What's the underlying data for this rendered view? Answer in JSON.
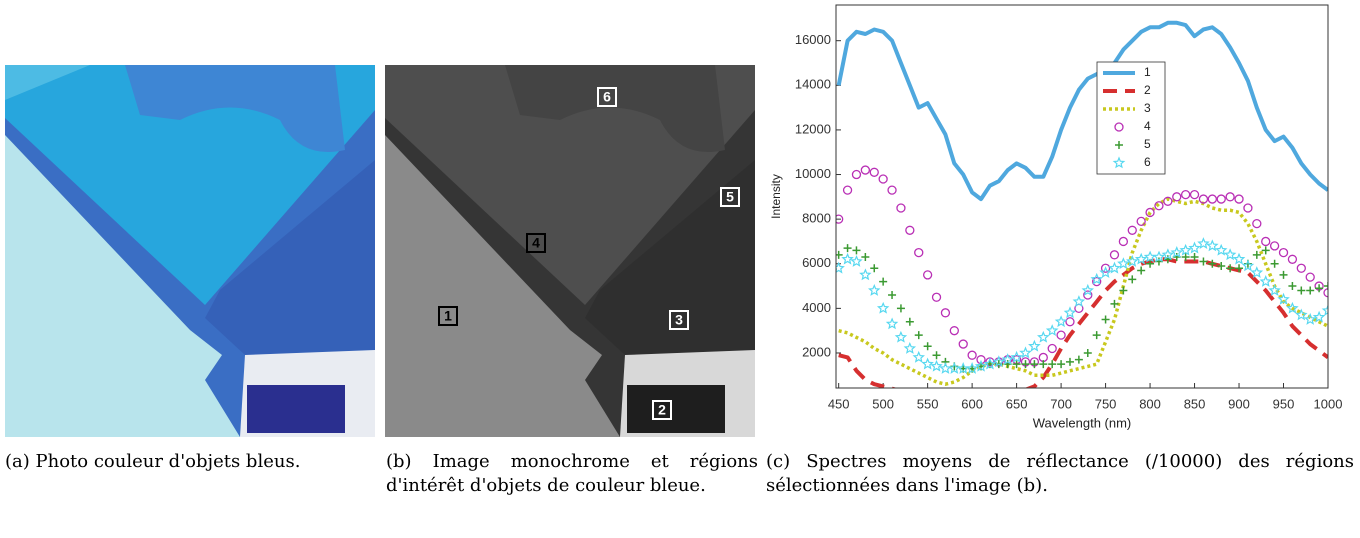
{
  "regions": [
    "1",
    "2",
    "3",
    "4",
    "5",
    "6"
  ],
  "captions": [
    "(a) Photo couleur d'objets bleus.",
    "(b) Image monochrome et régions d'intérêt d'objets de couleur bleue.",
    "(c) Spectres moyens de réflectance (/10000) des régions sélectionnées dans l'image (b)."
  ],
  "chart_data": {
    "type": "line",
    "x_label": "Wavelength (nm)",
    "y_label": "Intensity",
    "x": [
      450,
      460,
      470,
      480,
      490,
      500,
      510,
      520,
      530,
      540,
      550,
      560,
      570,
      580,
      590,
      600,
      610,
      620,
      630,
      640,
      650,
      660,
      670,
      680,
      690,
      700,
      710,
      720,
      730,
      740,
      750,
      760,
      770,
      780,
      790,
      800,
      810,
      820,
      830,
      840,
      850,
      860,
      870,
      880,
      890,
      900,
      910,
      920,
      930,
      940,
      950,
      960,
      970,
      980,
      990,
      1000
    ],
    "xlim": [
      447,
      1000
    ],
    "xticks": [
      450,
      500,
      550,
      600,
      650,
      700,
      750,
      800,
      850,
      900,
      950,
      1000
    ],
    "ylim": [
      430,
      17600
    ],
    "yticks": [
      2000,
      4000,
      6000,
      8000,
      10000,
      12000,
      14000,
      16000
    ],
    "legend": "upper-right",
    "series": [
      {
        "name": "1",
        "color": "#4fa8de",
        "style": "solid",
        "values": [
          14000,
          16000,
          16400,
          16300,
          16500,
          16400,
          16000,
          15000,
          14000,
          13000,
          13200,
          12500,
          11800,
          10500,
          10000,
          9200,
          8900,
          9500,
          9700,
          10200,
          10500,
          10300,
          9900,
          9900,
          10800,
          12000,
          13000,
          13800,
          14300,
          14500,
          14600,
          15000,
          15600,
          16000,
          16400,
          16600,
          16600,
          16800,
          16800,
          16700,
          16200,
          16500,
          16600,
          16300,
          15700,
          15000,
          14200,
          13000,
          12000,
          11500,
          11700,
          11200,
          10500,
          10000,
          9600,
          9300
        ]
      },
      {
        "name": "2",
        "color": "#d62f2f",
        "style": "dashed",
        "values": [
          1900,
          1800,
          1200,
          800,
          600,
          500,
          400,
          300,
          300,
          300,
          300,
          300,
          300,
          300,
          300,
          300,
          300,
          300,
          300,
          300,
          300,
          350,
          500,
          900,
          1500,
          2200,
          2800,
          3300,
          3800,
          4300,
          4800,
          5200,
          5500,
          5800,
          6000,
          6100,
          6200,
          6200,
          6100,
          6100,
          6100,
          6100,
          6000,
          5900,
          5800,
          5700,
          5600,
          5200,
          4800,
          4300,
          3800,
          3200,
          2800,
          2400,
          2100,
          1800
        ]
      },
      {
        "name": "3",
        "color": "#c8c81e",
        "style": "dotted",
        "values": [
          3000,
          2900,
          2700,
          2500,
          2200,
          2000,
          1700,
          1500,
          1300,
          1100,
          900,
          700,
          600,
          700,
          900,
          1200,
          1400,
          1500,
          1500,
          1400,
          1300,
          1200,
          1000,
          1000,
          1000,
          1100,
          1200,
          1300,
          1400,
          1500,
          2500,
          3500,
          5000,
          6500,
          7500,
          8300,
          8700,
          8900,
          8800,
          8700,
          8800,
          8700,
          8500,
          8400,
          8400,
          8300,
          7800,
          7000,
          6000,
          5000,
          4300,
          4000,
          3800,
          3600,
          3400,
          3200
        ]
      },
      {
        "name": "4",
        "color": "#b92fb5",
        "style": "circle",
        "values": [
          8000,
          9300,
          10000,
          10200,
          10100,
          9800,
          9300,
          8500,
          7500,
          6500,
          5500,
          4500,
          3800,
          3000,
          2400,
          1900,
          1700,
          1600,
          1600,
          1700,
          1700,
          1600,
          1600,
          1800,
          2200,
          2800,
          3400,
          4000,
          4600,
          5200,
          5800,
          6400,
          7000,
          7500,
          7900,
          8300,
          8600,
          8800,
          9000,
          9100,
          9100,
          8900,
          8900,
          8900,
          9000,
          8900,
          8500,
          7800,
          7000,
          6800,
          6500,
          6200,
          5800,
          5400,
          5000,
          4700
        ]
      },
      {
        "name": "5",
        "color": "#3b9a32",
        "style": "plus",
        "values": [
          6400,
          6700,
          6600,
          6300,
          5800,
          5200,
          4600,
          4000,
          3400,
          2800,
          2300,
          1900,
          1600,
          1400,
          1300,
          1300,
          1400,
          1500,
          1500,
          1500,
          1500,
          1500,
          1500,
          1500,
          1500,
          1500,
          1600,
          1700,
          2000,
          2800,
          3500,
          4200,
          4800,
          5300,
          5700,
          6000,
          6100,
          6200,
          6300,
          6300,
          6300,
          6100,
          6000,
          5900,
          5800,
          5800,
          6000,
          6400,
          6600,
          6000,
          5500,
          5000,
          4800,
          4800,
          4900,
          5000
        ]
      },
      {
        "name": "6",
        "color": "#58d8f0",
        "style": "star",
        "values": [
          5800,
          6200,
          6100,
          5500,
          4800,
          4000,
          3300,
          2700,
          2200,
          1800,
          1500,
          1400,
          1300,
          1300,
          1300,
          1300,
          1400,
          1500,
          1600,
          1700,
          1800,
          2000,
          2300,
          2700,
          3000,
          3400,
          3800,
          4300,
          4800,
          5300,
          5600,
          5800,
          6000,
          6100,
          6200,
          6300,
          6300,
          6400,
          6500,
          6600,
          6700,
          6900,
          6800,
          6600,
          6400,
          6200,
          5900,
          5600,
          5200,
          4800,
          4400,
          4000,
          3700,
          3500,
          3600,
          3900
        ]
      }
    ]
  }
}
